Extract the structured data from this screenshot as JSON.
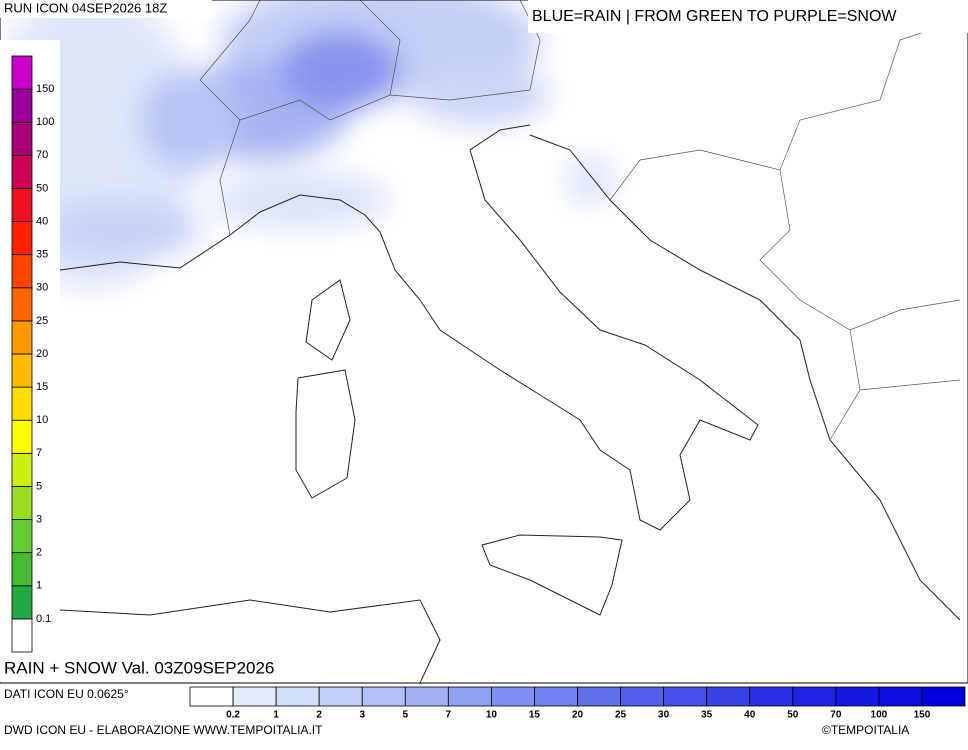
{
  "header": {
    "run": "RUN ICON 04SEP2026 18Z",
    "legend_title": "BLUE=RAIN | FROM GREEN TO PURPLE=SNOW"
  },
  "snow_scale": {
    "labels": [
      "0.1",
      "1",
      "2",
      "3",
      "5",
      "7",
      "10",
      "15",
      "20",
      "25",
      "30",
      "35",
      "40",
      "50",
      "70",
      "100",
      "150"
    ],
    "colors": [
      "#ffffff",
      "#22aa44",
      "#44bb33",
      "#66cc33",
      "#99dd22",
      "#ccee11",
      "#ffff00",
      "#ffdd00",
      "#ffbb00",
      "#ff9900",
      "#ff6600",
      "#ff4400",
      "#ff2200",
      "#ee1122",
      "#cc0055",
      "#aa0077",
      "#990099",
      "#cc00cc"
    ]
  },
  "product": "RAIN + SNOW Val. 03Z09SEP2026",
  "footer": {
    "data_source": "DATI ICON EU 0.0625°",
    "credit": "DWD ICON EU - ELABORAZIONE WWW.TEMPOITALIA.IT",
    "copyright": "©TEMPOITALIA"
  },
  "rain_scale": {
    "labels": [
      "0.2",
      "1",
      "2",
      "3",
      "5",
      "7",
      "10",
      "15",
      "20",
      "25",
      "30",
      "35",
      "40",
      "50",
      "70",
      "100",
      "150"
    ],
    "colors": [
      "#ffffff",
      "#e4ecfb",
      "#d2defa",
      "#c2d0f8",
      "#b0c0f6",
      "#a0b2f4",
      "#90a2f2",
      "#8090f0",
      "#7080ee",
      "#6070ec",
      "#5060ea",
      "#4450e8",
      "#3840e6",
      "#2c30e4",
      "#2024e2",
      "#1418e0",
      "#0c0cde",
      "#0000dc"
    ]
  }
}
